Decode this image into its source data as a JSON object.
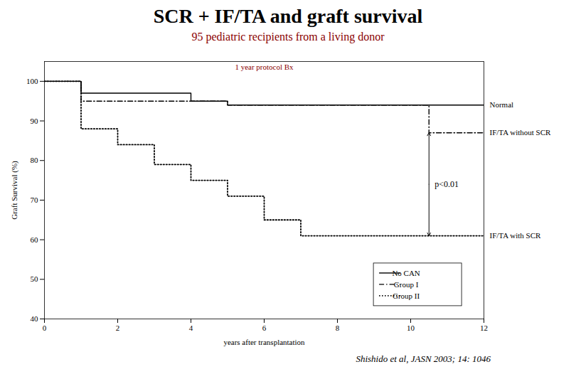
{
  "chart_data": {
    "type": "line",
    "title": "SCR + IF/TA and graft survival",
    "subtitle": "95 pediatric recipients from a living donor",
    "subtitle_color": "#8B0000",
    "caption": "Shishido et al, JASN 2003; 14: 1046",
    "xlabel": "years after transplantation",
    "ylabel": "Graft Survival (%)",
    "xlim": [
      0,
      12
    ],
    "ylim": [
      40,
      105
    ],
    "xticks": [
      0,
      2,
      4,
      6,
      8,
      10,
      12
    ],
    "yticks": [
      40,
      50,
      60,
      70,
      80,
      90,
      100
    ],
    "grid": false,
    "legend": "lower right",
    "series": [
      {
        "name": "No CAN",
        "label": "Normal",
        "color": "#000000",
        "line_style": "solid",
        "x": [
          0,
          1.0,
          1.0,
          4.0,
          4.0,
          5.0,
          5.0,
          6.0,
          6.0,
          10.5,
          10.5,
          12
        ],
        "values": [
          100,
          100,
          97,
          97,
          95,
          95,
          94,
          94,
          94,
          94,
          94,
          94
        ]
      },
      {
        "name": "Group I",
        "label": "IF/TA without SCR",
        "color": "#000000",
        "line_style": "dashdot",
        "x": [
          0,
          1.0,
          1.0,
          5.0,
          5.0,
          10.5,
          10.5,
          12
        ],
        "values": [
          100,
          100,
          95,
          95,
          94,
          94,
          87,
          87
        ]
      },
      {
        "name": "Group II",
        "label": "IF/TA with SCR",
        "color": "#000000",
        "line_style": "dotted",
        "x": [
          0,
          1.0,
          1.0,
          2.0,
          2.0,
          3.0,
          3.0,
          4.0,
          4.0,
          5.0,
          5.0,
          6.0,
          6.0,
          7.0,
          7.0,
          7.5,
          7.5,
          8.0,
          8.0,
          12
        ],
        "values": [
          100,
          100,
          88,
          88,
          84,
          84,
          79,
          79,
          75,
          75,
          71,
          71,
          65,
          65,
          61,
          61,
          61,
          61,
          61,
          61
        ]
      }
    ],
    "annotations": [
      {
        "text": "p<0.01",
        "x": 10.5,
        "y_top": 87,
        "y_bottom": 61
      },
      {
        "text": "1 year protocol Bx",
        "color": "#8B0000"
      }
    ]
  }
}
